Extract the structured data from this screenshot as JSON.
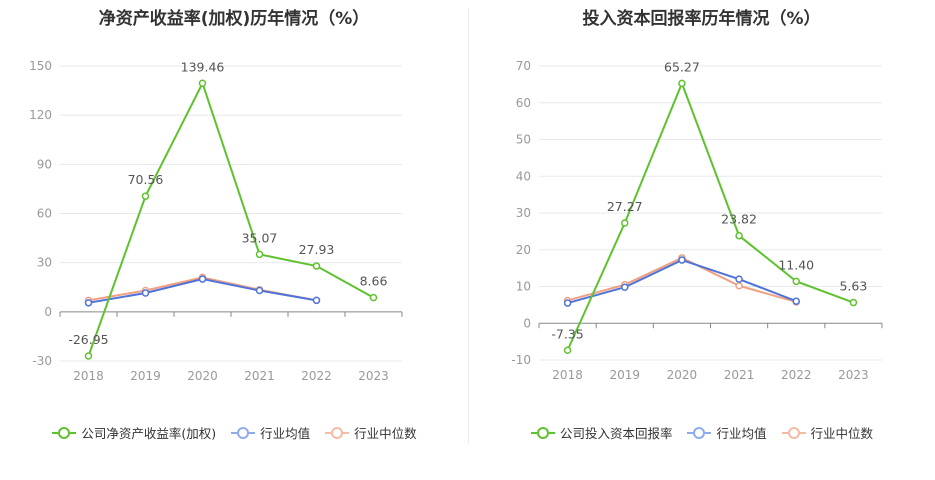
{
  "chart_data": [
    {
      "type": "line",
      "title": "净资产收益率(加权)历年情况（%）",
      "categories": [
        "2018",
        "2019",
        "2020",
        "2021",
        "2022",
        "2023"
      ],
      "ylim": [
        -30,
        150
      ],
      "yticks": [
        "-30",
        "0",
        "30",
        "60",
        "90",
        "120",
        "150"
      ],
      "grid": true,
      "legend_position": "bottom",
      "series": [
        {
          "name": "公司净资产收益率(加权)",
          "color": "#5ec22e",
          "values": [
            -26.95,
            70.56,
            139.46,
            35.07,
            27.93,
            8.66
          ],
          "labels": [
            "-26.95",
            "70.56",
            "139.46",
            "35.07",
            "27.93",
            "8.66"
          ]
        },
        {
          "name": "行业均值",
          "color": "#4f73d8",
          "values": [
            5.5,
            11.5,
            20.0,
            13.0,
            7.0,
            null
          ]
        },
        {
          "name": "行业中位数",
          "color": "#f0a080",
          "values": [
            7.0,
            13.0,
            21.0,
            13.5,
            7.0,
            null
          ]
        }
      ]
    },
    {
      "type": "line",
      "title": "投入资本回报率历年情况（%）",
      "categories": [
        "2018",
        "2019",
        "2020",
        "2021",
        "2022",
        "2023"
      ],
      "ylim": [
        -10,
        70
      ],
      "yticks": [
        "-10",
        "0",
        "10",
        "20",
        "30",
        "40",
        "50",
        "60",
        "70"
      ],
      "grid": true,
      "legend_position": "bottom",
      "series": [
        {
          "name": "公司投入资本回报率",
          "color": "#5ec22e",
          "values": [
            -7.35,
            27.27,
            65.27,
            23.82,
            11.4,
            5.63
          ],
          "labels": [
            "-7.35",
            "27.27",
            "65.27",
            "23.82",
            "11.40",
            "5.63"
          ]
        },
        {
          "name": "行业均值",
          "color": "#4f73d8",
          "values": [
            5.5,
            9.8,
            17.2,
            12.0,
            6.0,
            null
          ]
        },
        {
          "name": "行业中位数",
          "color": "#f0a080",
          "values": [
            6.2,
            10.5,
            17.8,
            10.2,
            5.8,
            null
          ]
        }
      ]
    }
  ]
}
